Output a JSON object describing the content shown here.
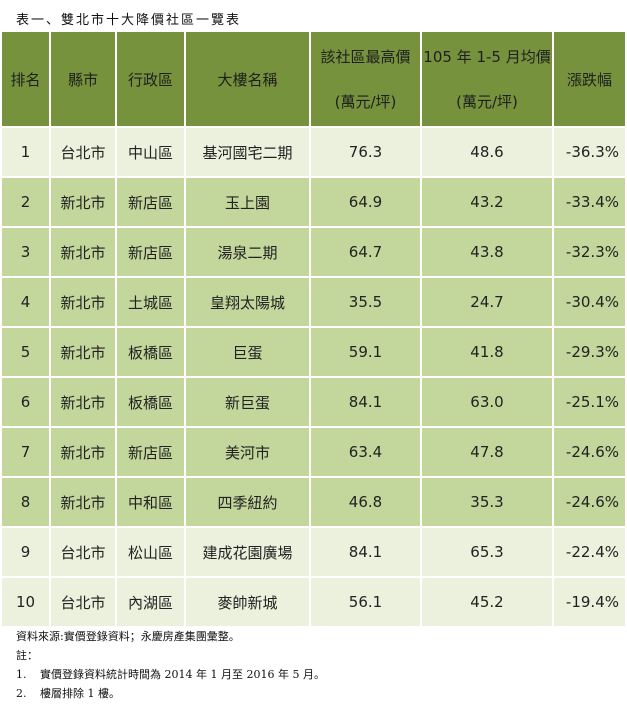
{
  "caption": "表一、雙北市十大降價社區一覽表",
  "table": {
    "headers": [
      {
        "line1": "排名",
        "line2": ""
      },
      {
        "line1": "縣市",
        "line2": ""
      },
      {
        "line1": "行政區",
        "line2": ""
      },
      {
        "line1": "大樓名稱",
        "line2": ""
      },
      {
        "line1": "該社區最高價",
        "line2": "(萬元/坪)"
      },
      {
        "line1": "105 年 1-5 月均價",
        "line2": "(萬元/坪)"
      },
      {
        "line1": "漲跌幅",
        "line2": ""
      }
    ],
    "rows": [
      {
        "rank": "1",
        "city": "台北市",
        "district": "中山區",
        "building": "基河國宅二期",
        "peak": "76.3",
        "avg": "48.6",
        "change": "-36.3%",
        "shade": "light"
      },
      {
        "rank": "2",
        "city": "新北市",
        "district": "新店區",
        "building": "玉上園",
        "peak": "64.9",
        "avg": "43.2",
        "change": "-33.4%",
        "shade": "dark"
      },
      {
        "rank": "3",
        "city": "新北市",
        "district": "新店區",
        "building": "湯泉二期",
        "peak": "64.7",
        "avg": "43.8",
        "change": "-32.3%",
        "shade": "dark"
      },
      {
        "rank": "4",
        "city": "新北市",
        "district": "土城區",
        "building": "皇翔太陽城",
        "peak": "35.5",
        "avg": "24.7",
        "change": "-30.4%",
        "shade": "dark"
      },
      {
        "rank": "5",
        "city": "新北市",
        "district": "板橋區",
        "building": "巨蛋",
        "peak": "59.1",
        "avg": "41.8",
        "change": "-29.3%",
        "shade": "dark"
      },
      {
        "rank": "6",
        "city": "新北市",
        "district": "板橋區",
        "building": "新巨蛋",
        "peak": "84.1",
        "avg": "63.0",
        "change": "-25.1%",
        "shade": "dark"
      },
      {
        "rank": "7",
        "city": "新北市",
        "district": "新店區",
        "building": "美河市",
        "peak": "63.4",
        "avg": "47.8",
        "change": "-24.6%",
        "shade": "dark"
      },
      {
        "rank": "8",
        "city": "新北市",
        "district": "中和區",
        "building": "四季紐約",
        "peak": "46.8",
        "avg": "35.3",
        "change": "-24.6%",
        "shade": "dark"
      },
      {
        "rank": "9",
        "city": "台北市",
        "district": "松山區",
        "building": "建成花園廣場",
        "peak": "84.1",
        "avg": "65.3",
        "change": "-22.4%",
        "shade": "light"
      },
      {
        "rank": "10",
        "city": "台北市",
        "district": "內湖區",
        "building": "麥帥新城",
        "peak": "56.1",
        "avg": "45.2",
        "change": "-19.4%",
        "shade": "light"
      }
    ]
  },
  "notes": {
    "source": "資料來源:實價登錄資料；永慶房產集團彙整。",
    "label": "註：",
    "items": [
      {
        "num": "1.",
        "text": "實價登錄資料統計時間為 2014 年 1 月至 2016 年 5 月。"
      },
      {
        "num": "2.",
        "text": "樓層排除 1 樓。"
      }
    ]
  },
  "colors": {
    "header_bg": "#76923c",
    "row_light": "#ebf1dd",
    "row_dark": "#c3d69b"
  }
}
